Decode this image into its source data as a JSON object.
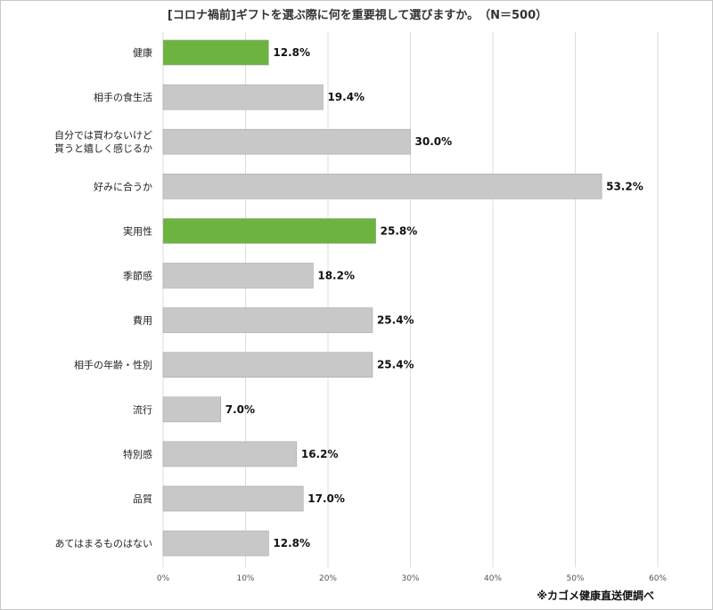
{
  "chart_data": {
    "type": "bar",
    "orientation": "horizontal",
    "title": "[コロナ禍前]ギフトを選ぶ際に何を重要視して選びますか。　（N＝500）",
    "categories": [
      [
        "健康"
      ],
      [
        "相手の食生活"
      ],
      [
        "自分では買わないけど",
        "貰うと嬉しく感じるか"
      ],
      [
        "好みに合うか"
      ],
      [
        "実用性"
      ],
      [
        "季節感"
      ],
      [
        "費用"
      ],
      [
        "相手の年齢・性別"
      ],
      [
        "流行"
      ],
      [
        "特別感"
      ],
      [
        "品質"
      ],
      [
        "あてはまるものはない"
      ]
    ],
    "values": [
      12.8,
      19.4,
      30.0,
      53.2,
      25.8,
      18.2,
      25.4,
      25.4,
      7.0,
      16.2,
      17.0,
      12.8
    ],
    "value_labels": [
      "12.8%",
      "19.4%",
      "30.0%",
      "53.2%",
      "25.8%",
      "18.2%",
      "25.4%",
      "25.4%",
      "7.0%",
      "16.2%",
      "17.0%",
      "12.8%"
    ],
    "highlighted": [
      true,
      false,
      false,
      false,
      true,
      false,
      false,
      false,
      false,
      false,
      false,
      false
    ],
    "xlim": [
      0,
      60
    ],
    "xticks": [
      0,
      10,
      20,
      30,
      40,
      50,
      60
    ],
    "xtick_labels": [
      "0%",
      "10%",
      "20%",
      "30%",
      "40%",
      "50%",
      "60%"
    ],
    "grid": "vertical",
    "colors": {
      "highlight": "#6db33f",
      "default": "#c8c8c8",
      "grid": "#dddddd"
    },
    "source": "※カゴメ健康直送便調べ"
  }
}
